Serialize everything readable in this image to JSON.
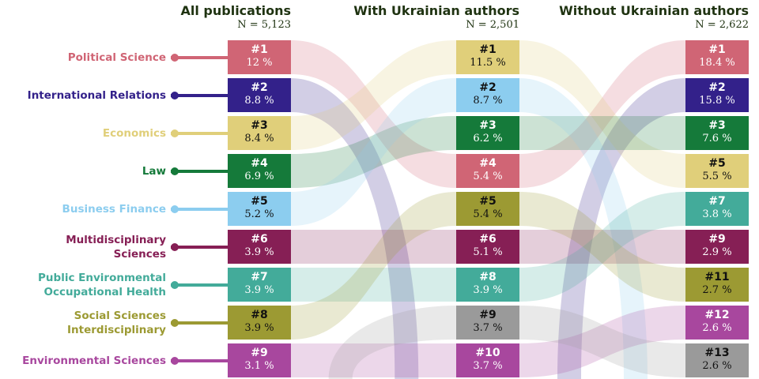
{
  "columns": [
    {
      "title": "All publications",
      "n": "N = 5,123"
    },
    {
      "title": "With Ukrainian authors",
      "n": "N = 2,501"
    },
    {
      "title": "Without Ukrainian authors",
      "n": "N = 2,622"
    }
  ],
  "categories": [
    {
      "label": "Political Science",
      "color": "#d06575",
      "dark": false,
      "ranks": [
        {
          "rank": "#1",
          "pct": "12 %"
        },
        {
          "rank": "#4",
          "pct": "5.4 %"
        },
        {
          "rank": "#1",
          "pct": "18.4 %"
        }
      ]
    },
    {
      "label": "International Relations",
      "color": "#33218a",
      "dark": false,
      "ranks": [
        {
          "rank": "#2",
          "pct": "8.8 %"
        },
        null,
        {
          "rank": "#2",
          "pct": "15.8 %"
        }
      ]
    },
    {
      "label": "Economics",
      "color": "#e0cf7a",
      "dark": true,
      "ranks": [
        {
          "rank": "#3",
          "pct": "8.4 %"
        },
        {
          "rank": "#1",
          "pct": "11.5 %"
        },
        {
          "rank": "#5",
          "pct": "5.5 %"
        }
      ]
    },
    {
      "label": "Law",
      "color": "#157a3a",
      "dark": false,
      "ranks": [
        {
          "rank": "#4",
          "pct": "6.9 %"
        },
        {
          "rank": "#3",
          "pct": "6.2 %"
        },
        {
          "rank": "#3",
          "pct": "7.6 %"
        }
      ]
    },
    {
      "label": "Business Finance",
      "color": "#8ccdef",
      "dark": true,
      "ranks": [
        {
          "rank": "#5",
          "pct": "5.2 %"
        },
        {
          "rank": "#2",
          "pct": "8.7 %"
        },
        null
      ]
    },
    {
      "label": "Multidisciplinary Sciences",
      "color": "#861f55",
      "dark": false,
      "ranks": [
        {
          "rank": "#6",
          "pct": "3.9 %"
        },
        {
          "rank": "#6",
          "pct": "5.1 %"
        },
        {
          "rank": "#9",
          "pct": "2.9 %"
        }
      ]
    },
    {
      "label": "Public Environmental Occupational Health",
      "color": "#43ab9a",
      "dark": false,
      "ranks": [
        {
          "rank": "#7",
          "pct": "3.9 %"
        },
        {
          "rank": "#8",
          "pct": "3.9 %"
        },
        {
          "rank": "#7",
          "pct": "3.8 %"
        }
      ]
    },
    {
      "label": "Social Sciences Interdisciplinary",
      "color": "#9c9a33",
      "dark": true,
      "ranks": [
        {
          "rank": "#8",
          "pct": "3.9 %"
        },
        {
          "rank": "#5",
          "pct": "5.4 %"
        },
        {
          "rank": "#11",
          "pct": "2.7 %"
        }
      ]
    },
    {
      "label": "Environmental Sciences",
      "color": "#a8479e",
      "dark": false,
      "ranks": [
        {
          "rank": "#9",
          "pct": "3.1 %"
        },
        {
          "rank": "#10",
          "pct": "3.7 %"
        },
        {
          "rank": "#12",
          "pct": "2.6 %"
        }
      ]
    },
    {
      "label": "",
      "color": "#9a9a9a",
      "dark": true,
      "ranks": [
        null,
        {
          "rank": "#9",
          "pct": "3.7 %"
        },
        {
          "rank": "#13",
          "pct": "2.6 %"
        }
      ]
    }
  ]
}
